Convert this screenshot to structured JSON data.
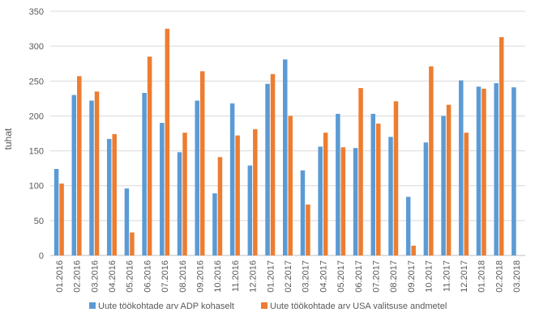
{
  "chart_data": {
    "type": "bar",
    "ylabel": "tuhat",
    "xlabel": "",
    "ylim": [
      0,
      350
    ],
    "yticks": [
      0,
      50,
      100,
      150,
      200,
      250,
      300,
      350
    ],
    "grid": true,
    "legend_position": "bottom",
    "categories": [
      "01.2016",
      "02.2016",
      "03.2016",
      "04.2016",
      "05.2016",
      "06.2016",
      "07.2016",
      "08.2016",
      "09.2016",
      "10.2016",
      "11.2016",
      "12.2016",
      "01.2017",
      "02.2017",
      "03.2017",
      "04.2017",
      "05.2017",
      "06.2017",
      "07.2017",
      "08.2017",
      "09.2017",
      "10.2017",
      "11.2017",
      "12.2017",
      "01.2018",
      "02.2018",
      "03.2018"
    ],
    "series": [
      {
        "name": "Uute töökohtade arv ADP kohaselt",
        "color": "#5B9BD5",
        "values": [
          124,
          230,
          222,
          167,
          96,
          233,
          190,
          148,
          222,
          89,
          218,
          129,
          246,
          281,
          122,
          156,
          203,
          154,
          203,
          170,
          84,
          162,
          200,
          251,
          242,
          247,
          241
        ]
      },
      {
        "name": "Uute töökohtade arv USA valitsuse andmetel",
        "color": "#ED7D31",
        "values": [
          103,
          257,
          235,
          174,
          33,
          285,
          325,
          176,
          264,
          141,
          172,
          181,
          260,
          200,
          73,
          176,
          155,
          240,
          189,
          221,
          14,
          271,
          216,
          176,
          239,
          313,
          null
        ]
      }
    ]
  }
}
